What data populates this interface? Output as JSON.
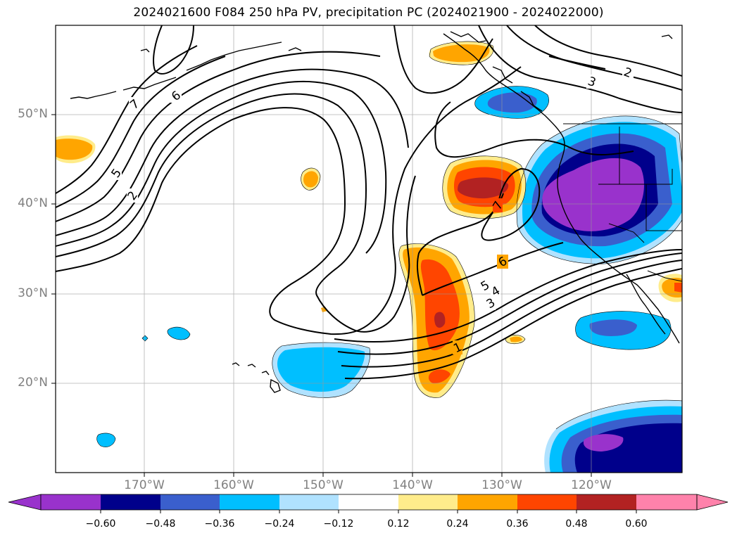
{
  "title": "2024021600 F084 250 hPa PV, precipitation PC (2024021900 - 2024022000)",
  "lat_labels": [
    "50°N",
    "40°N",
    "30°N",
    "20°N"
  ],
  "lon_labels": [
    "170°W",
    "160°W",
    "150°W",
    "140°W",
    "130°W",
    "120°W"
  ],
  "contour_labels": [
    "7",
    "6",
    "5",
    "2",
    "6",
    "5",
    "4",
    "3",
    "1",
    "7",
    "3",
    "2"
  ],
  "colorbar": {
    "ticks": [
      "−0.60",
      "−0.48",
      "−0.36",
      "−0.24",
      "−0.12",
      "0.12",
      "0.24",
      "0.36",
      "0.48",
      "0.60"
    ],
    "colors": [
      "#9932cc",
      "#00008b",
      "#3a5fcd",
      "#00bfff",
      "#b0e2ff",
      "#ffffff",
      "#ffec8b",
      "#ffa500",
      "#ff4500",
      "#b22222",
      "#ff82ab"
    ]
  },
  "shading_colors": {
    "purple": "#9932cc",
    "navy": "#00008b",
    "royal": "#3a5fcd",
    "sky": "#00bfff",
    "pale_blue": "#b0e2ff",
    "pale_yellow": "#ffec8b",
    "orange": "#ffa500",
    "red_orange": "#ff4500",
    "firebrick": "#b22222"
  }
}
